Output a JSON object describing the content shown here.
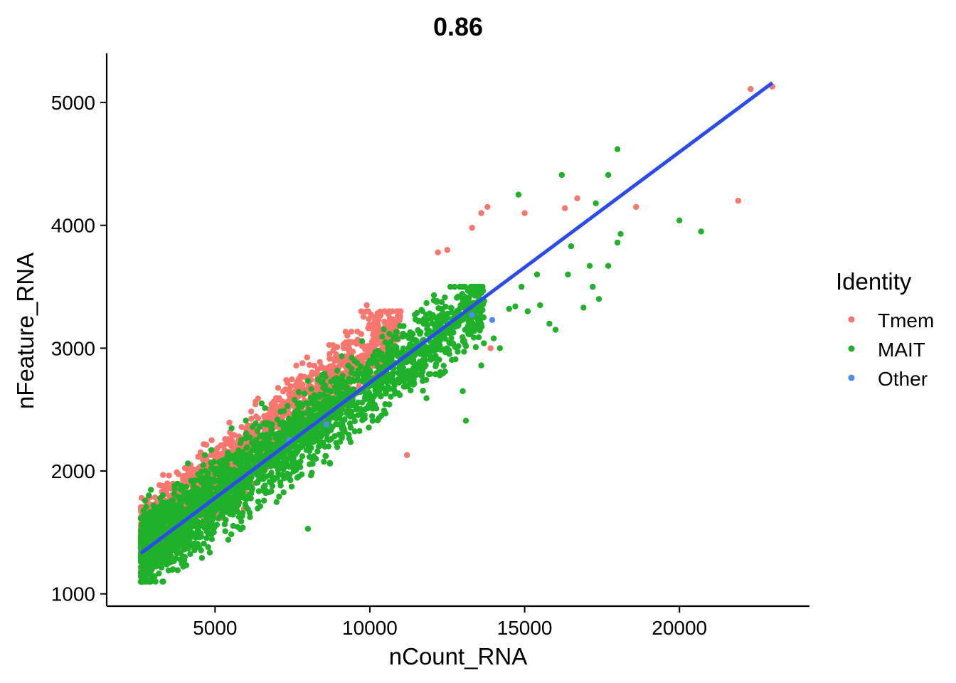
{
  "chart_data": {
    "type": "scatter",
    "title": "0.86",
    "xlabel": "nCount_RNA",
    "ylabel": "nFeature_RNA",
    "xlim": [
      1500,
      24200
    ],
    "ylim": [
      900,
      5400
    ],
    "xticks": [
      5000,
      10000,
      15000,
      20000
    ],
    "yticks": [
      1000,
      2000,
      3000,
      4000,
      5000
    ],
    "grid": false,
    "legend": {
      "title": "Identity",
      "position": "right",
      "entries": [
        {
          "label": "Tmem",
          "color": "#F8766D"
        },
        {
          "label": "MAIT",
          "color": "#1FB12A"
        },
        {
          "label": "Other",
          "color": "#4E8BF5"
        }
      ]
    },
    "trend_line": {
      "color": "#2B4BF0",
      "x": [
        2600,
        23000
      ],
      "y": [
        1330,
        5160
      ]
    },
    "series": [
      {
        "name": "Tmem",
        "color": "#F8766D",
        "cloud": {
          "x_range": [
            2600,
            11000
          ],
          "y_range": [
            1100,
            3300
          ],
          "n": 1600,
          "center_slope": 0.21,
          "center_intercept": 900,
          "spread": 230
        },
        "outliers": [
          {
            "x": 22300,
            "y": 5110
          },
          {
            "x": 23000,
            "y": 5130
          },
          {
            "x": 21900,
            "y": 4200
          },
          {
            "x": 18600,
            "y": 4150
          },
          {
            "x": 16700,
            "y": 4220
          },
          {
            "x": 16300,
            "y": 4140
          },
          {
            "x": 13800,
            "y": 4150
          },
          {
            "x": 13600,
            "y": 4100
          },
          {
            "x": 15000,
            "y": 4100
          },
          {
            "x": 13300,
            "y": 3980
          },
          {
            "x": 12200,
            "y": 3780
          },
          {
            "x": 12500,
            "y": 3800
          },
          {
            "x": 13900,
            "y": 3000
          },
          {
            "x": 11200,
            "y": 2130
          },
          {
            "x": 9900,
            "y": 3350
          }
        ]
      },
      {
        "name": "MAIT",
        "color": "#1FB12A",
        "cloud": {
          "x_range": [
            2600,
            13700
          ],
          "y_range": [
            1100,
            3500
          ],
          "n": 2600,
          "center_slope": 0.185,
          "center_intercept": 860,
          "spread": 240
        },
        "outliers": [
          {
            "x": 18000,
            "y": 4620
          },
          {
            "x": 17700,
            "y": 4410
          },
          {
            "x": 16200,
            "y": 4410
          },
          {
            "x": 14800,
            "y": 4250
          },
          {
            "x": 17300,
            "y": 4180
          },
          {
            "x": 20000,
            "y": 4040
          },
          {
            "x": 20700,
            "y": 3950
          },
          {
            "x": 18100,
            "y": 3930
          },
          {
            "x": 18000,
            "y": 3860
          },
          {
            "x": 16500,
            "y": 3830
          },
          {
            "x": 17700,
            "y": 3670
          },
          {
            "x": 17100,
            "y": 3670
          },
          {
            "x": 17200,
            "y": 3500
          },
          {
            "x": 17400,
            "y": 3400
          },
          {
            "x": 15500,
            "y": 3350
          },
          {
            "x": 16000,
            "y": 3150
          },
          {
            "x": 16400,
            "y": 3600
          },
          {
            "x": 15800,
            "y": 3200
          },
          {
            "x": 14700,
            "y": 3340
          },
          {
            "x": 15100,
            "y": 3300
          },
          {
            "x": 14500,
            "y": 3320
          },
          {
            "x": 16900,
            "y": 3330
          },
          {
            "x": 15400,
            "y": 3600
          },
          {
            "x": 14900,
            "y": 3500
          },
          {
            "x": 14200,
            "y": 3000
          },
          {
            "x": 13600,
            "y": 2860
          },
          {
            "x": 13000,
            "y": 2650
          },
          {
            "x": 14000,
            "y": 3080
          },
          {
            "x": 13100,
            "y": 2410
          },
          {
            "x": 8000,
            "y": 1530
          }
        ]
      },
      {
        "name": "Other",
        "color": "#4E8BF5",
        "points": [
          {
            "x": 13950,
            "y": 3230
          },
          {
            "x": 13300,
            "y": 3270
          },
          {
            "x": 8600,
            "y": 2380
          },
          {
            "x": 7400,
            "y": 2250
          }
        ]
      }
    ]
  }
}
